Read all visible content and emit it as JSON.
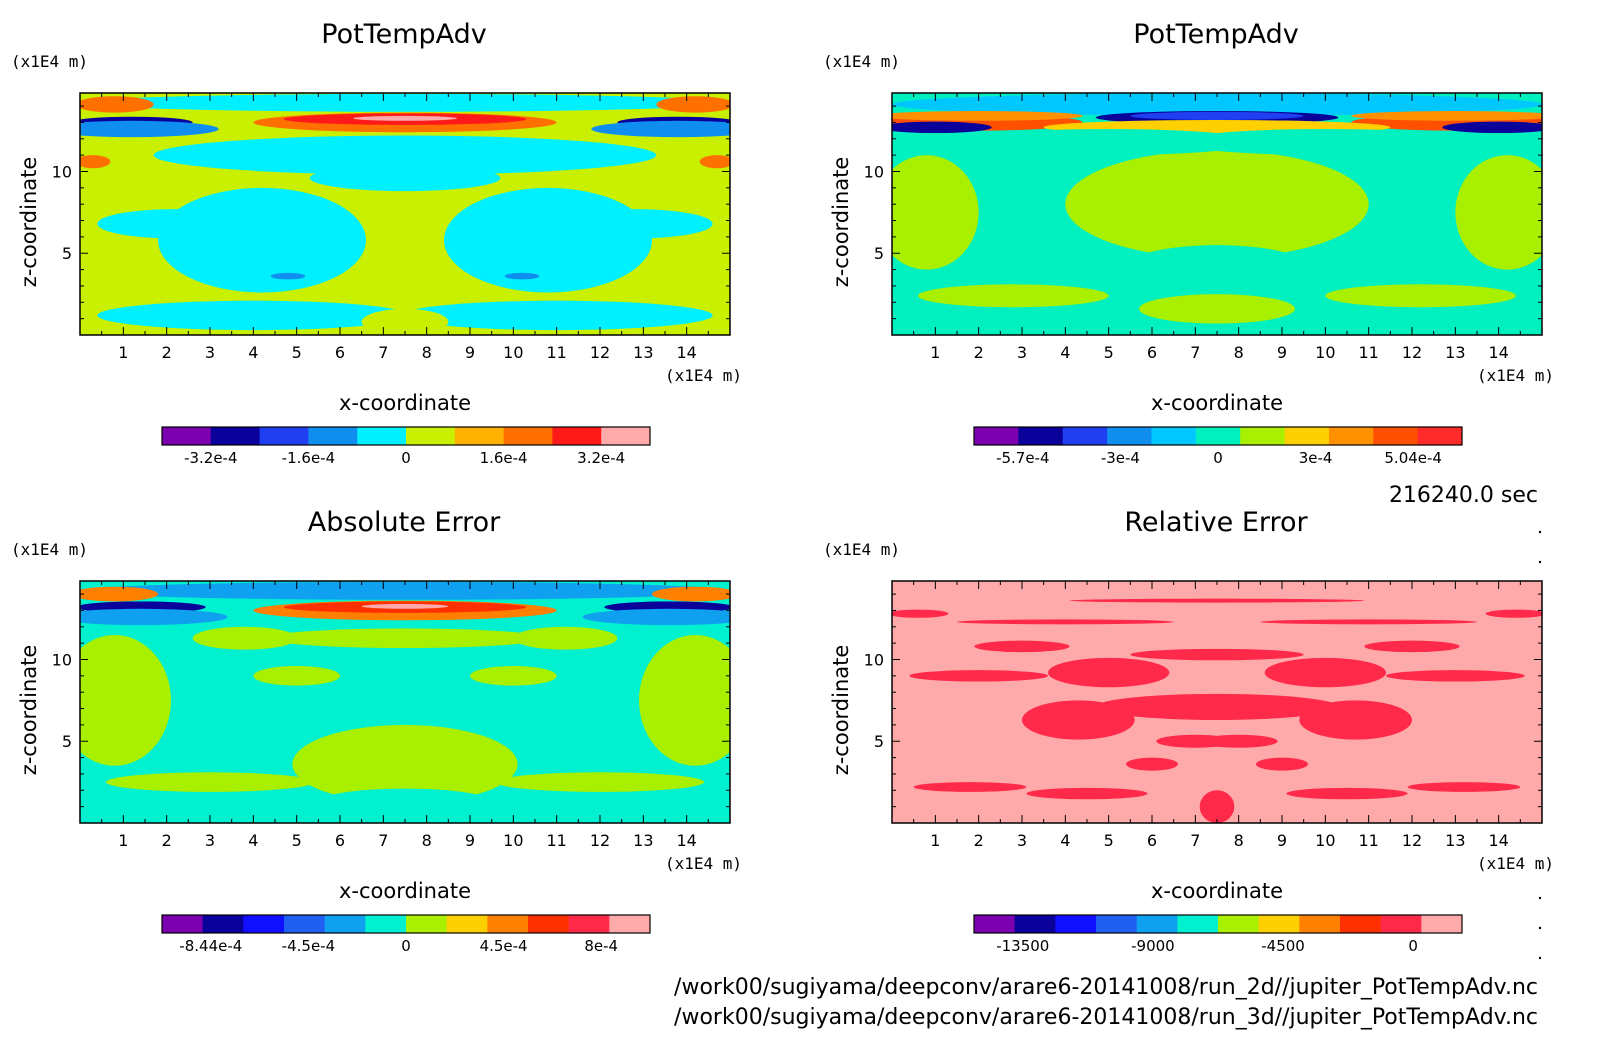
{
  "time_label": "216240.0 sec",
  "file_paths": [
    "/work00/sugiyama/deepconv/arare6-20141008/run_2d//jupiter_PotTempAdv.nc",
    "/work00/sugiyama/deepconv/arare6-20141008/run_3d//jupiter_PotTempAdv.nc"
  ],
  "chart_data": [
    {
      "type": "heatmap",
      "title": "PotTempAdv",
      "xlabel": "x-coordinate",
      "ylabel": "z-coordinate",
      "x_unit": "(x1E4 m)",
      "y_unit": "(x1E4 m)",
      "xlim": [
        0,
        15
      ],
      "ylim": [
        0,
        14.8
      ],
      "x_ticks": [
        "1",
        "2",
        "3",
        "4",
        "5",
        "6",
        "7",
        "8",
        "9",
        "10",
        "11",
        "12",
        "13",
        "14"
      ],
      "y_ticks": [
        "5",
        "10"
      ],
      "colorbar": {
        "colors": [
          "#7a00b0",
          "#0a009a",
          "#1f3ff0",
          "#0f8ef0",
          "#00f0ff",
          "#c8f000",
          "#ffb000",
          "#ff7000",
          "#ff1a1a",
          "#ffaaaa"
        ],
        "tick_labels": [
          "-3.2e-4",
          "-1.6e-4",
          "0",
          "1.6e-4",
          "3.2e-4"
        ]
      },
      "field": "pta2d"
    },
    {
      "type": "heatmap",
      "title": "PotTempAdv",
      "xlabel": "x-coordinate",
      "ylabel": "z-coordinate",
      "x_unit": "(x1E4 m)",
      "y_unit": "(x1E4 m)",
      "xlim": [
        0,
        15
      ],
      "ylim": [
        0,
        14.8
      ],
      "x_ticks": [
        "1",
        "2",
        "3",
        "4",
        "5",
        "6",
        "7",
        "8",
        "9",
        "10",
        "11",
        "12",
        "13",
        "14"
      ],
      "y_ticks": [
        "5",
        "10"
      ],
      "colorbar": {
        "colors": [
          "#7a00b0",
          "#0a009a",
          "#1f3ff0",
          "#0f8ef0",
          "#00c8ff",
          "#00f0c0",
          "#a8f000",
          "#ffd000",
          "#ff9000",
          "#ff5000",
          "#ff2a2a"
        ],
        "tick_labels": [
          "-5.7e-4",
          "-3e-4",
          "0",
          "3e-4",
          "5.04e-4"
        ]
      },
      "field": "pta3d"
    },
    {
      "type": "heatmap",
      "title": "Absolute Error",
      "xlabel": "x-coordinate",
      "ylabel": "z-coordinate",
      "x_unit": "(x1E4 m)",
      "y_unit": "(x1E4 m)",
      "xlim": [
        0,
        15
      ],
      "ylim": [
        0,
        14.8
      ],
      "x_ticks": [
        "1",
        "2",
        "3",
        "4",
        "5",
        "6",
        "7",
        "8",
        "9",
        "10",
        "11",
        "12",
        "13",
        "14"
      ],
      "y_ticks": [
        "5",
        "10"
      ],
      "colorbar": {
        "colors": [
          "#7a00b0",
          "#0a009a",
          "#1010ff",
          "#1f60f0",
          "#0fa0f0",
          "#00f0d0",
          "#a8f000",
          "#ffd000",
          "#ff8000",
          "#ff3000",
          "#ff2a4a",
          "#ffaaaa"
        ],
        "tick_labels": [
          "-8.44e-4",
          "-4.5e-4",
          "0",
          "4.5e-4",
          "8e-4"
        ]
      },
      "field": "abserr"
    },
    {
      "type": "heatmap",
      "title": "Relative Error",
      "xlabel": "x-coordinate",
      "ylabel": "z-coordinate",
      "x_unit": "(x1E4 m)",
      "y_unit": "(x1E4 m)",
      "xlim": [
        0,
        15
      ],
      "ylim": [
        0,
        14.8
      ],
      "x_ticks": [
        "1",
        "2",
        "3",
        "4",
        "5",
        "6",
        "7",
        "8",
        "9",
        "10",
        "11",
        "12",
        "13",
        "14"
      ],
      "y_ticks": [
        "5",
        "10"
      ],
      "colorbar": {
        "colors": [
          "#7a00b0",
          "#0a009a",
          "#1010ff",
          "#1f60f0",
          "#0fa0f0",
          "#00f0d0",
          "#a8f000",
          "#ffd000",
          "#ff8000",
          "#ff3000",
          "#ff2a4a",
          "#ffaaaa"
        ],
        "tick_labels": [
          "-13500",
          "-9000",
          "-4500",
          "0"
        ]
      },
      "field": "relerr"
    }
  ]
}
